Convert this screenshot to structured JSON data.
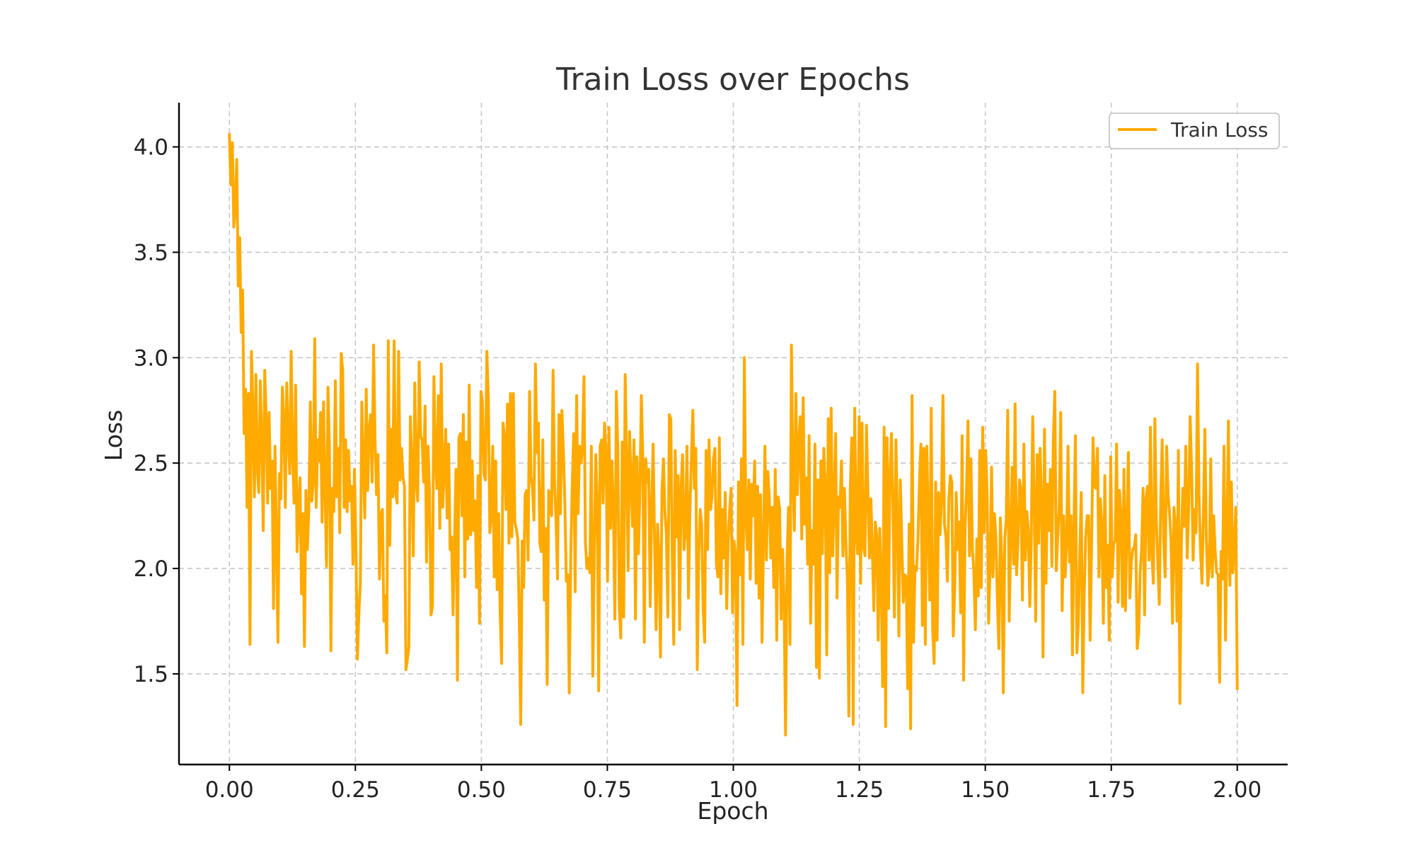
{
  "chart_data": {
    "type": "line",
    "title": "Train Loss over Epochs",
    "xlabel": "Epoch",
    "ylabel": "Loss",
    "xlim": [
      -0.1,
      2.1
    ],
    "ylim": [
      1.07,
      4.21
    ],
    "xticks": [
      0.0,
      0.25,
      0.5,
      0.75,
      1.0,
      1.25,
      1.5,
      1.75,
      2.0
    ],
    "xtick_labels": [
      "0.00",
      "0.25",
      "0.50",
      "0.75",
      "1.00",
      "1.25",
      "1.50",
      "1.75",
      "2.00"
    ],
    "yticks": [
      1.5,
      2.0,
      2.5,
      3.0,
      3.5,
      4.0
    ],
    "ytick_labels": [
      "1.5",
      "2.0",
      "2.5",
      "3.0",
      "3.5",
      "4.0"
    ],
    "grid": true,
    "legend_position": "upper right",
    "series": [
      {
        "name": "Train Loss",
        "color": "#FFAA00",
        "x_start": 0.0,
        "x_end": 2.0,
        "values": [
          4.06,
          3.82,
          4.02,
          3.62,
          3.72,
          3.94,
          3.34,
          3.57,
          3.12,
          3.32,
          2.64,
          2.85,
          2.29,
          2.83,
          1.64,
          3.03,
          2.75,
          2.34,
          2.92,
          2.47,
          2.36,
          2.89,
          2.61,
          2.18,
          2.94,
          2.72,
          2.31,
          2.74,
          2.38,
          2.51,
          1.81,
          2.58,
          2.12,
          1.65,
          2.45,
          2.33,
          2.86,
          2.72,
          2.29,
          2.88,
          2.62,
          2.45,
          3.03,
          2.52,
          2.31,
          2.87,
          2.08,
          2.27,
          2.43,
          1.88,
          2.26,
          1.63,
          2.37,
          2.09,
          2.28,
          2.79,
          2.32,
          2.41,
          3.09,
          2.29,
          2.61,
          2.51,
          2.74,
          2.22,
          2.79,
          2.38,
          2.01,
          2.86,
          2.57,
          1.61,
          2.38,
          2.27,
          2.89,
          2.34,
          2.57,
          2.17,
          3.02,
          2.94,
          2.29,
          2.61,
          2.27,
          2.56,
          2.32,
          2.39,
          2.02,
          2.47,
          2.11,
          1.57,
          1.79,
          1.93,
          2.79,
          2.51,
          2.24,
          2.85,
          2.37,
          2.66,
          2.73,
          2.41,
          3.06,
          2.61,
          2.35,
          2.54,
          1.95,
          2.26,
          2.28,
          1.75,
          1.87,
          1.6,
          3.08,
          2.11,
          2.66,
          2.34,
          3.08,
          2.36,
          2.31,
          3.03,
          2.42,
          2.57,
          2.43,
          2.39,
          1.52,
          1.57,
          1.63,
          2.72,
          2.48,
          2.06,
          2.88,
          2.41,
          2.32,
          2.98,
          2.63,
          2.61,
          2.41,
          2.77,
          2.03,
          2.58,
          2.37,
          1.78,
          1.82,
          2.91,
          2.54,
          2.38,
          2.82,
          2.19,
          2.97,
          2.29,
          2.46,
          2.66,
          2.24,
          2.59,
          2.09,
          2.15,
          1.78,
          2.12,
          2.47,
          1.47,
          2.62,
          2.64,
          2.25,
          2.73,
          1.96,
          2.6,
          2.14,
          2.87,
          2.16,
          2.51,
          2.18,
          2.32,
          1.91,
          2.44,
          1.74,
          2.84,
          2.79,
          2.45,
          2.42,
          3.03,
          2.81,
          2.17,
          2.25,
          2.58,
          1.96,
          2.51,
          1.9,
          2.26,
          1.8,
          1.55,
          2.69,
          2.62,
          2.28,
          2.78,
          2.12,
          2.83,
          2.15,
          2.83,
          2.22,
          2.19,
          2.14,
          1.77,
          1.26,
          2.13,
          1.91,
          2.35,
          2.37,
          2.04,
          2.84,
          2.44,
          2.38,
          2.23,
          2.97,
          2.55,
          2.69,
          2.12,
          2.08,
          2.61,
          1.85,
          2.19,
          1.45,
          2.37,
          2.33,
          2.25,
          2.94,
          2.41,
          2.23,
          1.95,
          2.73,
          2.26,
          2.75,
          2.56,
          2.31,
          1.94,
          1.97,
          1.41,
          2.05,
          2.39,
          2.64,
          1.89,
          2.82,
          2.26,
          2.58,
          2.5,
          2.58,
          2.91,
          2.12,
          2.0,
          2.05,
          1.98,
          2.58,
          1.49,
          2.07,
          2.54,
          2.32,
          1.42,
          2.58,
          2.61,
          2.31,
          2.69,
          2.55,
          1.94,
          2.67,
          2.19,
          2.51,
          2.28,
          1.76,
          2.84,
          2.56,
          1.82,
          1.67,
          2.6,
          1.77,
          2.92,
          2.51,
          1.99,
          2.65,
          2.43,
          2.2,
          2.61,
          1.76,
          2.53,
          2.07,
          2.37,
          2.82,
          2.52,
          1.65,
          2.52,
          2.41,
          2.47,
          1.82,
          2.29,
          2.59,
          2.12,
          1.71,
          2.21,
          2.05,
          1.58,
          2.37,
          2.52,
          2.27,
          2.16,
          1.77,
          2.73,
          2.71,
          2.06,
          1.64,
          2.56,
          2.15,
          2.44,
          1.71,
          2.38,
          2.54,
          2.09,
          2.18,
          2.58,
          1.86,
          2.28,
          2.52,
          2.75,
          2.38,
          2.57,
          1.52,
          2.07,
          2.28,
          2.21,
          1.81,
          1.65,
          2.56,
          2.09,
          2.61,
          2.28,
          2.34,
          2.52,
          2.57,
          2.02,
          1.96,
          2.62,
          1.88,
          2.28,
          2.05,
          2.36,
          1.81,
          2.12,
          2.28,
          2.38,
          1.79,
          2.13,
          2.06,
          1.35,
          2.41,
          1.97,
          2.52,
          1.64,
          3.0,
          2.25,
          2.09,
          2.42,
          1.95,
          2.4,
          2.25,
          2.51,
          1.93,
          2.39,
          1.86,
          2.35,
          1.65,
          2.12,
          2.58,
          2.04,
          2.46,
          2.33,
          2.05,
          2.29,
          1.91,
          2.47,
          1.66,
          2.34,
          2.28,
          1.76,
          2.09,
          1.83,
          1.21,
          2.04,
          2.29,
          1.64,
          3.06,
          2.44,
          2.18,
          2.83,
          2.35,
          2.6,
          2.72,
          2.14,
          2.81,
          2.21,
          2.43,
          2.02,
          2.63,
          1.74,
          2.18,
          2.02,
          2.59,
          1.53,
          2.42,
          1.48,
          2.51,
          2.07,
          2.57,
          2.38,
          1.59,
          2.71,
          1.98,
          2.76,
          2.06,
          2.31,
          2.64,
          1.86,
          2.34,
          2.29,
          2.51,
          2.06,
          2.38,
          2.12,
          1.96,
          1.3,
          2.38,
          2.62,
          1.26,
          2.76,
          2.18,
          2.07,
          2.72,
          1.93,
          2.69,
          2.1,
          2.06,
          2.68,
          2.35,
          2.05,
          2.33,
          2.09,
          1.8,
          2.22,
          2.15,
          1.66,
          2.19,
          1.95,
          1.44,
          2.67,
          1.25,
          2.62,
          1.81,
          2.45,
          2.64,
          2.29,
          1.77,
          2.61,
          2.25,
          1.68,
          2.42,
          2.13,
          1.84,
          1.97,
          1.96,
          1.43,
          2.21,
          1.24,
          2.82,
          1.65,
          2.01,
          1.99,
          2.14,
          2.41,
          2.59,
          1.73,
          2.57,
          1.64,
          2.58,
          2.22,
          1.85,
          2.76,
          1.71,
          1.55,
          2.41,
          1.66,
          2.36,
          2.16,
          2.33,
          2.82,
          2.21,
          2.15,
          1.94,
          2.33,
          2.44,
          2.41,
          1.68,
          1.92,
          2.36,
          2.09,
          2.22,
          1.79,
          2.63,
          1.47,
          2.19,
          2.37,
          2.7,
          2.06,
          2.52,
          2.09,
          1.98,
          1.71,
          2.14,
          1.87,
          2.56,
          1.91,
          2.67,
          2.17,
          2.56,
          2.36,
          1.74,
          2.0,
          2.48,
          1.96,
          2.26,
          2.14,
          1.84,
          1.62,
          2.24,
          2.03,
          1.41,
          2.14,
          2.23,
          2.75,
          1.75,
          2.13,
          2.48,
          2.02,
          2.78,
          1.97,
          2.13,
          2.42,
          2.37,
          1.85,
          2.59,
          2.04,
          2.27,
          2.18,
          1.82,
          2.15,
          2.72,
          2.31,
          1.75,
          2.54,
          2.12,
          2.57,
          2.33,
          1.58,
          2.66,
          1.93,
          2.4,
          2.18,
          2.47,
          2.01,
          2.61,
          2.84,
          1.99,
          2.15,
          2.29,
          2.74,
          1.8,
          2.25,
          1.96,
          2.12,
          2.58,
          2.03,
          2.25,
          1.59,
          2.19,
          2.63,
          1.6,
          1.74,
          2.08,
          2.36,
          1.41,
          1.88,
          2.15,
          2.25,
          2.25,
          1.66,
          2.11,
          2.62,
          2.39,
          2.38,
          2.57,
          1.96,
          2.33,
          2.19,
          1.74,
          2.44,
          1.91,
          2.11,
          1.66,
          2.53,
          1.96,
          2.12,
          2.13,
          2.59,
          1.84,
          2.37,
          2.25,
          1.82,
          2.47,
          1.8,
          2.21,
          2.55,
          1.86,
          2.03,
          2.09,
          2.1,
          2.16,
          1.62,
          1.69,
          1.98,
          2.09,
          2.38,
          1.78,
          2.33,
          2.39,
          2.04,
          2.67,
          2.06,
          1.93,
          2.71,
          2.23,
          2.03,
          1.83,
          2.33,
          2.61,
          2.14,
          1.96,
          2.58,
          2.35,
          2.26,
          2.13,
          1.74,
          2.29,
          2.19,
          1.75,
          2.56,
          1.36,
          2.11,
          2.38,
          2.2,
          2.58,
          2.05,
          2.29,
          2.72,
          2.46,
          2.04,
          2.28,
          2.17,
          2.97,
          2.35,
          2.09,
          1.93,
          2.25,
          2.66,
          2.14,
          1.92,
          2.02,
          2.52,
          1.96,
          2.25,
          2.08,
          1.98,
          1.97,
          1.46,
          2.08,
          1.95,
          2.58,
          1.66,
          2.16,
          2.7,
          1.92,
          2.41,
          1.98,
          2.11,
          2.29,
          1.43
        ]
      }
    ]
  }
}
